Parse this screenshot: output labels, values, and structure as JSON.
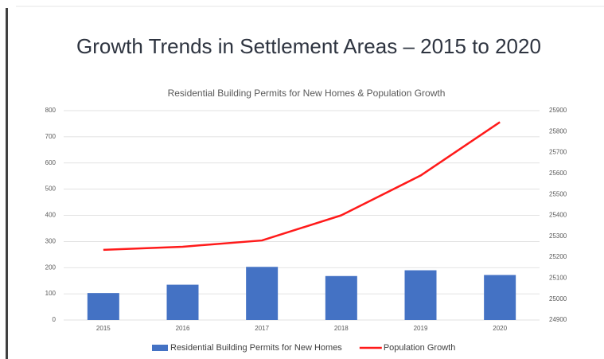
{
  "title": "Growth Trends in Settlement Areas – 2015 to 2020",
  "chart_data": {
    "type": "bar_line",
    "title": "Residential Building Permits for New Homes & Population Growth",
    "categories": [
      "2015",
      "2016",
      "2017",
      "2018",
      "2019",
      "2020"
    ],
    "series": [
      {
        "name": "Residential Building Permits for New Homes",
        "type": "bar",
        "color": "#4472c4",
        "values": [
          103,
          135,
          203,
          168,
          190,
          172
        ]
      },
      {
        "name": "Population Growth",
        "type": "line",
        "color": "#ff1a1a",
        "axis": "y2",
        "values": [
          25235,
          25250,
          25280,
          25400,
          25590,
          25845
        ]
      }
    ],
    "ylim": [
      0,
      800
    ],
    "yticks": [
      0,
      100,
      200,
      300,
      400,
      500,
      600,
      700,
      800
    ],
    "y2lim": [
      24900,
      25900
    ],
    "y2ticks": [
      24900,
      25000,
      25100,
      25200,
      25300,
      25400,
      25500,
      25600,
      25700,
      25800,
      25900
    ],
    "grid": true,
    "legend": "bottom"
  }
}
